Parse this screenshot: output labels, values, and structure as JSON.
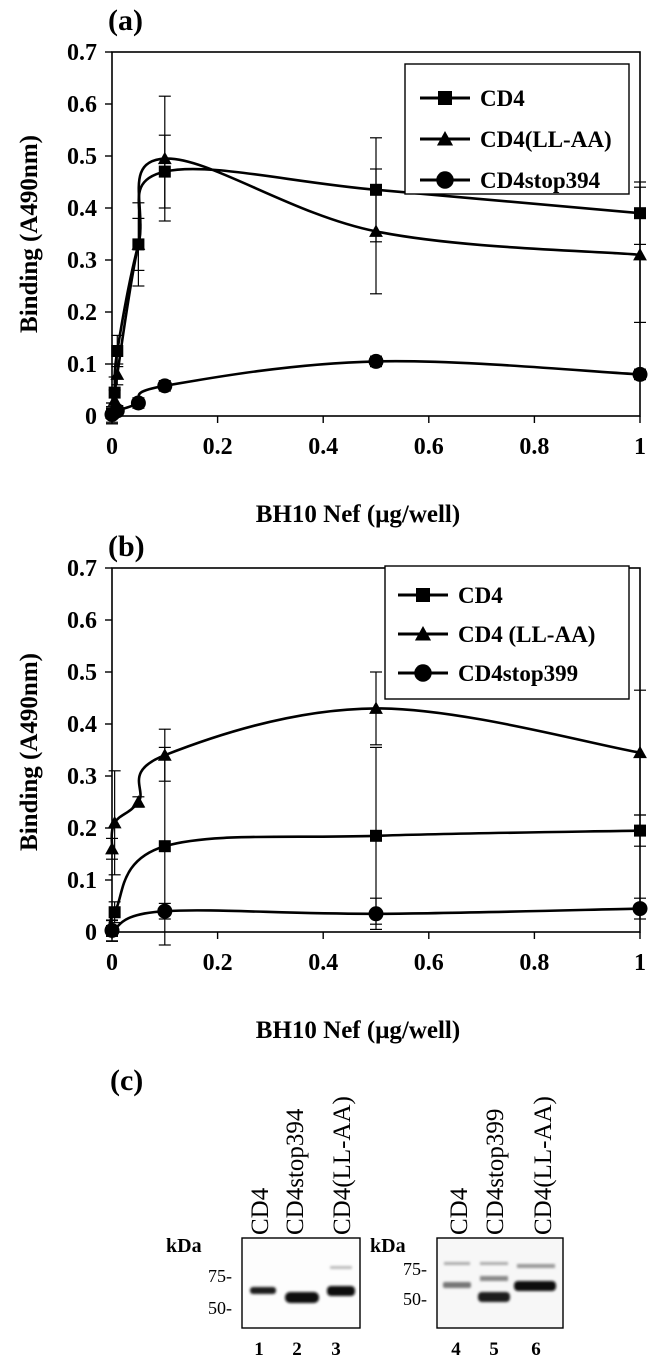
{
  "chart_data": [
    {
      "type": "line",
      "panel_label": "(a)",
      "xlabel": "BH10 Nef (μg/well)",
      "ylabel": "Binding (A490nm)",
      "xlim": [
        0,
        1
      ],
      "ylim": [
        0,
        0.7
      ],
      "x_ticks": [
        "0",
        "0.2",
        "0.4",
        "0.6",
        "0.8",
        "1"
      ],
      "y_ticks": [
        "0",
        "0.1",
        "0.2",
        "0.3",
        "0.4",
        "0.5",
        "0.6",
        "0.7"
      ],
      "legend_position": "top-right",
      "grid": false,
      "series": [
        {
          "name": "CD4",
          "marker": "square",
          "x": [
            0,
            0.005,
            0.01,
            0.05,
            0.1,
            0.5,
            1
          ],
          "y": [
            0.005,
            0.045,
            0.125,
            0.33,
            0.47,
            0.435,
            0.39
          ],
          "err": [
            0.02,
            0.03,
            0.03,
            0.08,
            0.07,
            0.1,
            0.06
          ]
        },
        {
          "name": "CD4(LL-AA)",
          "marker": "triangle",
          "x": [
            0,
            0.005,
            0.01,
            0.05,
            0.1,
            0.5,
            1
          ],
          "y": [
            0.005,
            0.03,
            0.08,
            0.33,
            0.495,
            0.355,
            0.31
          ],
          "err": [
            0.02,
            0.02,
            0.02,
            0.05,
            0.12,
            0.12,
            0.13
          ]
        },
        {
          "name": "CD4stop394",
          "marker": "circle",
          "x": [
            0,
            0.01,
            0.05,
            0.1,
            0.5,
            1
          ],
          "y": [
            0.003,
            0.01,
            0.025,
            0.058,
            0.105,
            0.08
          ],
          "err": [
            0.015,
            0.01,
            0.01,
            0.01,
            0.01,
            0.01
          ]
        }
      ]
    },
    {
      "type": "line",
      "panel_label": "(b)",
      "xlabel": "BH10 Nef (μg/well)",
      "ylabel": "Binding (A490nm)",
      "xlim": [
        0,
        1
      ],
      "ylim": [
        0,
        0.7
      ],
      "x_ticks": [
        "0",
        "0.2",
        "0.4",
        "0.6",
        "0.8",
        "1"
      ],
      "y_ticks": [
        "0",
        "0.1",
        "0.2",
        "0.3",
        "0.4",
        "0.5",
        "0.6",
        "0.7"
      ],
      "legend_position": "top-right",
      "grid": false,
      "series": [
        {
          "name": "CD4",
          "marker": "square",
          "x": [
            0,
            0.005,
            0.1,
            0.5,
            1
          ],
          "y": [
            0.002,
            0.038,
            0.165,
            0.185,
            0.195
          ],
          "err": [
            0.02,
            0.02,
            0.19,
            0.17,
            0.03
          ]
        },
        {
          "name": "CD4 (LL-AA)",
          "marker": "triangle",
          "x": [
            0,
            0.005,
            0.05,
            0.1,
            0.5,
            1
          ],
          "y": [
            0.16,
            0.21,
            0.25,
            0.34,
            0.43,
            0.345
          ],
          "err": [
            0.02,
            0.1,
            0.01,
            0.05,
            0.07,
            0.12
          ]
        },
        {
          "name": "CD4stop399",
          "marker": "circle",
          "x": [
            0,
            0.1,
            0.5,
            1
          ],
          "y": [
            0.003,
            0.04,
            0.035,
            0.045
          ],
          "err": [
            0.02,
            0.015,
            0.03,
            0.02
          ]
        }
      ]
    }
  ],
  "blot": {
    "panel_label": "(c)",
    "kda_label": "kDa",
    "left": {
      "lane_labels": [
        "CD4",
        "CD4stop394",
        "CD4(LL-AA)"
      ],
      "lane_numbers": [
        "1",
        "2",
        "3"
      ],
      "markers": [
        "75-",
        "50-"
      ]
    },
    "right": {
      "lane_labels": [
        "CD4",
        "CD4stop399",
        "CD4(LL-AA)"
      ],
      "lane_numbers": [
        "4",
        "5",
        "6"
      ],
      "markers": [
        "75-",
        "50-"
      ]
    }
  }
}
